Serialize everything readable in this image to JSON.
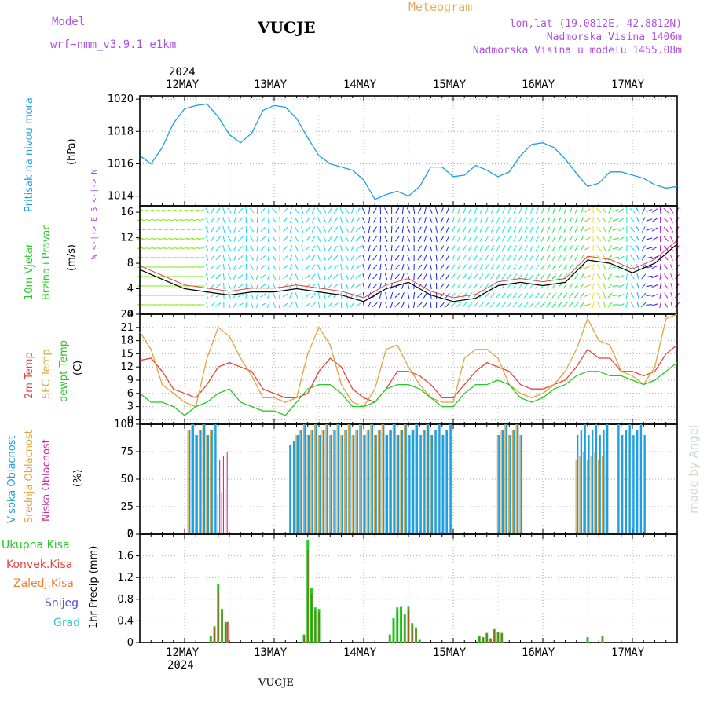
{
  "header": {
    "model_label": "Model",
    "model_name": "wrf−nmm_v3.9.1  e1km",
    "station": "VUCJE",
    "product": "Meteogram",
    "lonlat": "lon,lat (19.0812E, 42.8812N)",
    "elevation": "Nadmorska Visina 1406m",
    "model_elevation": "Nadmorska Visina u modelu 1455.08m",
    "watermark": "made by Angel",
    "footer_station": "VUCJE"
  },
  "x_axis": {
    "year": "2024",
    "days": [
      "12MAY",
      "13MAY",
      "14MAY",
      "15MAY",
      "16MAY",
      "17MAY"
    ]
  },
  "panels": {
    "pressure": {
      "label": "Pritisak na nivou mora",
      "unit": "(hPa)",
      "color": "#1e9fe0",
      "ticks": [
        "1014",
        "1016",
        "1018",
        "1020"
      ]
    },
    "wind": {
      "label1": "10m Vjetar",
      "label2": "Brzina i Pravac",
      "unit": "(m/s)",
      "compass": "W <-|-> E  S <-|-> N",
      "ticks": [
        "0",
        "4",
        "8",
        "12",
        "16"
      ]
    },
    "temp": {
      "label_t2": "2m Temp",
      "label_sfc": "SFC Temp",
      "label_dew": "dewpt Temp",
      "unit": "(C)",
      "ticks": [
        "0",
        "3",
        "6",
        "9",
        "12",
        "15",
        "18",
        "21",
        "24"
      ]
    },
    "cloud": {
      "label_high": "Visoka Oblacnost",
      "label_mid": "Srednja Oblacnost",
      "label_low": "Niska Oblacnost",
      "unit": "(%)",
      "ticks": [
        "0",
        "25",
        "50",
        "75",
        "100"
      ]
    },
    "precip": {
      "legend": [
        "Ukupna Kisa",
        "Konvek.Kisa",
        "Zaledj.Kisa",
        "Snijeg",
        "Grad"
      ],
      "unit": "1hr Precip (mm)",
      "ticks": [
        "0",
        "0.4",
        "0.8",
        "1.2",
        "1.6",
        "2"
      ]
    }
  },
  "colors": {
    "pressure": "#1e9fe0",
    "t2": "#e8423c",
    "sfc": "#e0a43c",
    "dew": "#28c828",
    "high_cloud": "#1e9fe0",
    "mid_cloud": "#e0a43c",
    "low_cloud": "#d028a0",
    "total_rain": "#28c828",
    "conv_rain": "#e8423c",
    "frozen_rain": "#f08030",
    "snow": "#5050e0",
    "hail": "#30c8c8",
    "model_label": "#b050e0"
  },
  "chart_data": [
    {
      "type": "line",
      "name": "pressure",
      "x_hours": [
        0,
        3,
        6,
        9,
        12,
        15,
        18,
        21,
        24,
        27,
        30,
        33,
        36,
        39,
        42,
        45,
        48,
        51,
        54,
        57,
        60,
        63,
        66,
        69,
        72,
        75,
        78,
        81,
        84,
        87,
        90,
        93,
        96,
        99,
        102,
        105,
        108,
        111,
        114,
        117,
        120,
        123,
        126,
        129,
        132,
        135,
        138,
        141,
        144
      ],
      "series": [
        {
          "values": [
            1016.5,
            1016.0,
            1017.0,
            1018.5,
            1019.4,
            1019.6,
            1019.7,
            1018.9,
            1017.8,
            1017.3,
            1017.9,
            1019.3,
            1019.6,
            1019.5,
            1018.8,
            1017.6,
            1016.5,
            1016.0,
            1015.8,
            1015.6,
            1015.0,
            1013.8,
            1014.1,
            1014.3,
            1014.0,
            1014.6,
            1015.8,
            1015.8,
            1015.2,
            1015.3,
            1015.9,
            1015.6,
            1015.2,
            1015.5,
            1016.5,
            1017.2,
            1017.3,
            1017.0,
            1016.3,
            1015.4,
            1014.6,
            1014.8,
            1015.5,
            1015.5,
            1015.3,
            1015.1,
            1014.7,
            1014.5,
            1014.6
          ]
        }
      ],
      "ylim": [
        1013.4,
        1020.2
      ]
    },
    {
      "type": "line",
      "name": "wind speed",
      "x_hours": [
        0,
        6,
        12,
        18,
        24,
        30,
        36,
        42,
        48,
        54,
        60,
        66,
        72,
        78,
        84,
        90,
        96,
        102,
        108,
        114,
        120,
        126,
        132,
        138,
        144
      ],
      "series": [
        {
          "values": [
            7.0,
            5.5,
            4.0,
            3.5,
            3.0,
            3.5,
            3.5,
            4.0,
            3.5,
            3.0,
            2.0,
            4.0,
            5.0,
            3.0,
            2.0,
            2.5,
            4.5,
            5.0,
            4.5,
            5.0,
            8.5,
            8.0,
            6.5,
            8.0,
            11.0
          ]
        }
      ],
      "ylim": [
        0,
        17
      ]
    },
    {
      "type": "line",
      "name": "temperatures",
      "x_hours": [
        0,
        3,
        6,
        9,
        12,
        15,
        18,
        21,
        24,
        27,
        30,
        33,
        36,
        39,
        42,
        45,
        48,
        51,
        54,
        57,
        60,
        63,
        66,
        69,
        72,
        75,
        78,
        81,
        84,
        87,
        90,
        93,
        96,
        99,
        102,
        105,
        108,
        111,
        114,
        117,
        120,
        123,
        126,
        129,
        132,
        135,
        138,
        141,
        144
      ],
      "series": [
        {
          "name": "2m Temp",
          "values": [
            13.5,
            14,
            11,
            7,
            6,
            5,
            8,
            12,
            13,
            12,
            11,
            7,
            6,
            5,
            5,
            6,
            11,
            14,
            12,
            7,
            5,
            4,
            7,
            11,
            11,
            10,
            8,
            5,
            5,
            8,
            11,
            13,
            12,
            11,
            8,
            7,
            7,
            8,
            9,
            12,
            16,
            14,
            14,
            11,
            11,
            10,
            11,
            15,
            17
          ]
        },
        {
          "name": "SFC Temp",
          "values": [
            20,
            16,
            8,
            6,
            4,
            3,
            14,
            21,
            19,
            14,
            10,
            5,
            5,
            4,
            5,
            15,
            21,
            17,
            8,
            4,
            3,
            7,
            16,
            17,
            12,
            8,
            5,
            4,
            4,
            14,
            16,
            16,
            14,
            8,
            6,
            5,
            6,
            8,
            11,
            16,
            23,
            18,
            17,
            11,
            10,
            8,
            12,
            23,
            24
          ]
        },
        {
          "name": "dewpt Temp",
          "values": [
            6,
            4,
            4,
            3,
            1,
            3,
            4,
            6,
            7,
            4,
            3,
            2,
            2,
            1,
            4,
            7,
            8,
            8,
            6,
            3,
            3,
            4,
            7,
            8,
            8,
            7,
            5,
            3,
            3,
            6,
            8,
            8,
            9,
            8,
            5,
            4,
            5,
            7,
            8,
            10,
            11,
            11,
            10,
            10,
            9,
            8,
            9,
            11,
            13
          ]
        }
      ],
      "ylim": [
        -1,
        24
      ]
    },
    {
      "type": "bar",
      "name": "cloud cover",
      "spans": [
        {
          "layer": "mid",
          "start_h": 13,
          "end_h": 21,
          "value": 100
        },
        {
          "layer": "high",
          "start_h": 13,
          "end_h": 21,
          "value": 100
        },
        {
          "layer": "mid",
          "start_h": 21,
          "end_h": 24,
          "value": 40
        },
        {
          "layer": "low",
          "start_h": 21,
          "end_h": 24,
          "value": 75
        },
        {
          "layer": "high",
          "start_h": 40,
          "end_h": 42,
          "value": 85
        },
        {
          "layer": "high",
          "start_h": 42,
          "end_h": 84,
          "value": 100
        },
        {
          "layer": "mid",
          "start_h": 42,
          "end_h": 84,
          "value": 100
        },
        {
          "layer": "high",
          "start_h": 96,
          "end_h": 103,
          "value": 100
        },
        {
          "layer": "mid",
          "start_h": 96,
          "end_h": 103,
          "value": 100
        },
        {
          "layer": "high",
          "start_h": 117,
          "end_h": 126,
          "value": 100
        },
        {
          "layer": "mid",
          "start_h": 117,
          "end_h": 126,
          "value": 75
        },
        {
          "layer": "high",
          "start_h": 128,
          "end_h": 136,
          "value": 100
        }
      ],
      "ylim": [
        0,
        100
      ]
    },
    {
      "type": "bar",
      "name": "1hr precipitation",
      "x_hours": [
        19,
        20,
        21,
        22,
        23,
        44,
        45,
        46,
        47,
        48,
        67,
        68,
        69,
        70,
        71,
        72,
        73,
        74,
        75,
        76,
        91,
        92,
        93,
        94,
        95,
        96,
        97,
        120,
        124
      ],
      "series": [
        {
          "name": "Ukupna Kisa",
          "values": [
            0.12,
            0.3,
            1.08,
            0.62,
            0.38,
            0.15,
            1.9,
            1.0,
            0.65,
            0.62,
            0.15,
            0.45,
            0.65,
            0.66,
            0.52,
            0.66,
            0.36,
            0.28,
            0.05,
            0.0,
            0.12,
            0.1,
            0.18,
            0.08,
            0.25,
            0.2,
            0.18,
            0.1,
            0.12
          ]
        },
        {
          "name": "Konvek.Kisa",
          "values": [
            0.0,
            0.0,
            0.0,
            0.0,
            0.38,
            0.0,
            0.0,
            0.0,
            0.0,
            0.0,
            0.0,
            0.0,
            0.0,
            0.0,
            0.0,
            0.0,
            0.0,
            0.0,
            0.0,
            0.0,
            0.0,
            0.0,
            0.0,
            0.0,
            0.0,
            0.0,
            0.0,
            0.0,
            0.0
          ]
        }
      ],
      "ylim": [
        0,
        2
      ]
    }
  ]
}
